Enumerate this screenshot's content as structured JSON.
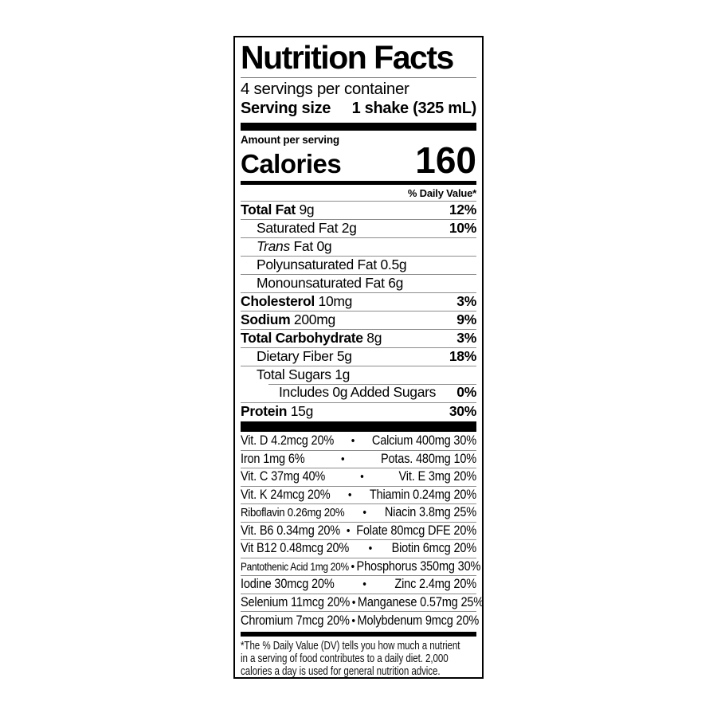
{
  "label": {
    "title": "Nutrition Facts",
    "servings_per_container": "4 servings per container",
    "serving_size_label": "Serving size",
    "serving_size_value": "1 shake (325 mL)",
    "amount_per_serving": "Amount per serving",
    "calories_label": "Calories",
    "calories_value": "160",
    "daily_value_header": "% Daily Value*",
    "bullet": "•",
    "nutrients": [
      {
        "b": "Total Fat",
        "t": " 9g",
        "dv": "12%"
      },
      {
        "t": "Saturated Fat 2g",
        "dv": "10%"
      },
      {
        "i": "Trans",
        "t": " Fat 0g",
        "dv": ""
      },
      {
        "t": "Polyunsaturated Fat 0.5g",
        "dv": ""
      },
      {
        "t": "Monounsaturated Fat 6g",
        "dv": ""
      },
      {
        "b": "Cholesterol",
        "t": " 10mg",
        "dv": "3%"
      },
      {
        "b": "Sodium",
        "t": " 200mg",
        "dv": "9%"
      },
      {
        "b": "Total Carbohydrate",
        "t": " 8g",
        "dv": "3%"
      },
      {
        "t": "Dietary Fiber 5g",
        "dv": "18%"
      },
      {
        "t": "Total Sugars 1g",
        "dv": ""
      },
      {
        "t": "Includes 0g Added Sugars",
        "dv": "0%"
      },
      {
        "b": "Protein",
        "t": " 15g",
        "dv": "30%"
      }
    ],
    "micronutrients": [
      {
        "left": "Vit. D 4.2mcg 20%",
        "right": "Calcium 400mg 30%"
      },
      {
        "left": "Iron 1mg 6%",
        "right": "Potas. 480mg 10%"
      },
      {
        "left": "Vit. C 37mg 40%",
        "right": "Vit. E 3mg 20%"
      },
      {
        "left": "Vit. K 24mcg 20%",
        "right": "Thiamin 0.24mg 20%"
      },
      {
        "left": "Riboflavin 0.26mg 20%",
        "right": "Niacin 3.8mg 25%"
      },
      {
        "left": "Vit. B6 0.34mg 20%",
        "right": "Folate 80mcg DFE 20%"
      },
      {
        "left": "Vit B12 0.48mcg 20%",
        "right": "Biotin 6mcg 20%"
      },
      {
        "left": "Pantothenic Acid 1mg 20%",
        "right": "Phosphorus 350mg 30%"
      },
      {
        "left": "Iodine 30mcg 20%",
        "right": "Zinc 2.4mg 20%"
      },
      {
        "left": "Selenium 11mcg 20%",
        "right": "Manganese 0.57mg 25%"
      },
      {
        "left": "Chromium 7mcg 20%",
        "right": "Molybdenum 9mcg 20%"
      }
    ],
    "footnote_lines": [
      "*The % Daily Value (DV) tells you how much a nutrient",
      "in a serving of food contributes to a daily diet. 2,000",
      "calories a day is used for general nutrition advice."
    ]
  },
  "colors": {
    "text": "#000000",
    "background": "#ffffff",
    "hairline": "#8c8c8c",
    "bar": "#000000"
  }
}
